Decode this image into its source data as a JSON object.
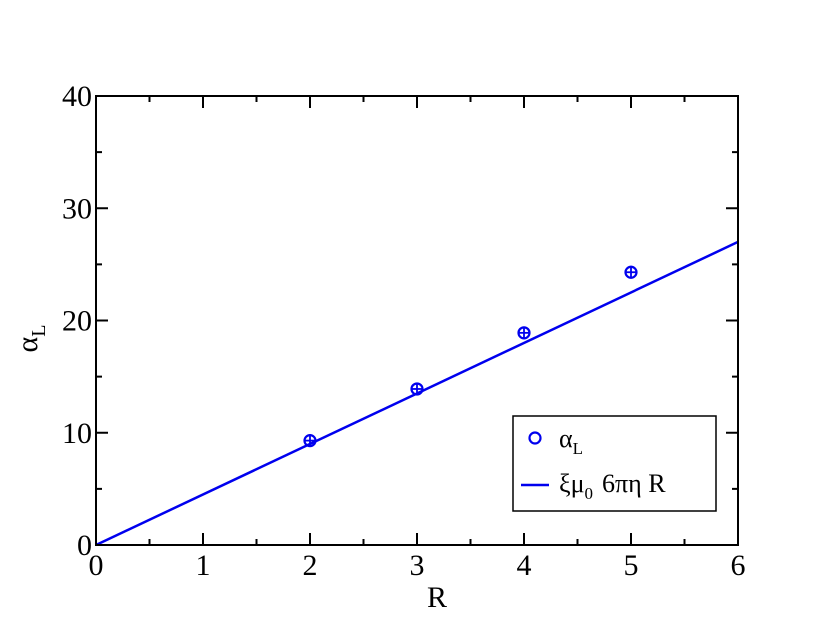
{
  "chart_data": {
    "type": "scatter",
    "xlabel": "R",
    "ylabel": "α",
    "ylabel_sub": "L",
    "xlim": [
      0,
      6
    ],
    "ylim": [
      0,
      40
    ],
    "x_ticks": [
      "0",
      "1",
      "2",
      "3",
      "4",
      "5",
      "6"
    ],
    "y_ticks": [
      "0",
      "10",
      "20",
      "30",
      "40"
    ],
    "grid": false,
    "legend_position": "bottom-right",
    "colors": {
      "series": "#0000ee",
      "axis": "#000000"
    },
    "series": [
      {
        "kind": "points",
        "legend_label": "α",
        "legend_sub": "L",
        "marker": "open-circle",
        "x": [
          2,
          3,
          4,
          5
        ],
        "y": [
          9.3,
          13.9,
          18.9,
          24.3
        ],
        "yerr": [
          0.3,
          0.3,
          0.3,
          0.3
        ]
      },
      {
        "kind": "line",
        "legend_label": "ξμ",
        "legend_sub": "0",
        "legend_suffix": "6πη R",
        "x": [
          0,
          6
        ],
        "y": [
          0,
          27.0
        ]
      }
    ]
  }
}
